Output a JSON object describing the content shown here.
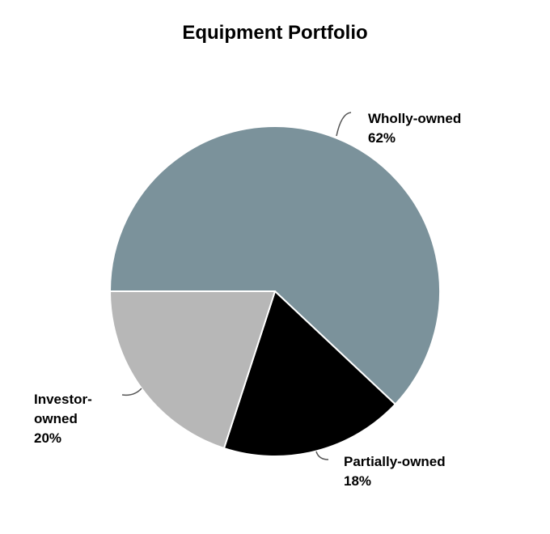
{
  "chart_data": {
    "type": "pie",
    "title": "Equipment Portfolio",
    "slices": [
      {
        "label": "Wholly-owned",
        "label_lines": [
          "Wholly-owned"
        ],
        "value": 62,
        "value_text": "62%",
        "color": "#7b929b"
      },
      {
        "label": "Partially-owned",
        "label_lines": [
          "Partially-owned"
        ],
        "value": 18,
        "value_text": "18%",
        "color": "#000000"
      },
      {
        "label": "Investor-owned",
        "label_lines": [
          "Investor-",
          "owned"
        ],
        "value": 20,
        "value_text": "20%",
        "color": "#b7b7b7"
      }
    ],
    "start_angle_deg": 180,
    "direction": "clockwise",
    "slice_border_color": "#ffffff",
    "leader_line_color": "#555555",
    "legend": "none"
  }
}
